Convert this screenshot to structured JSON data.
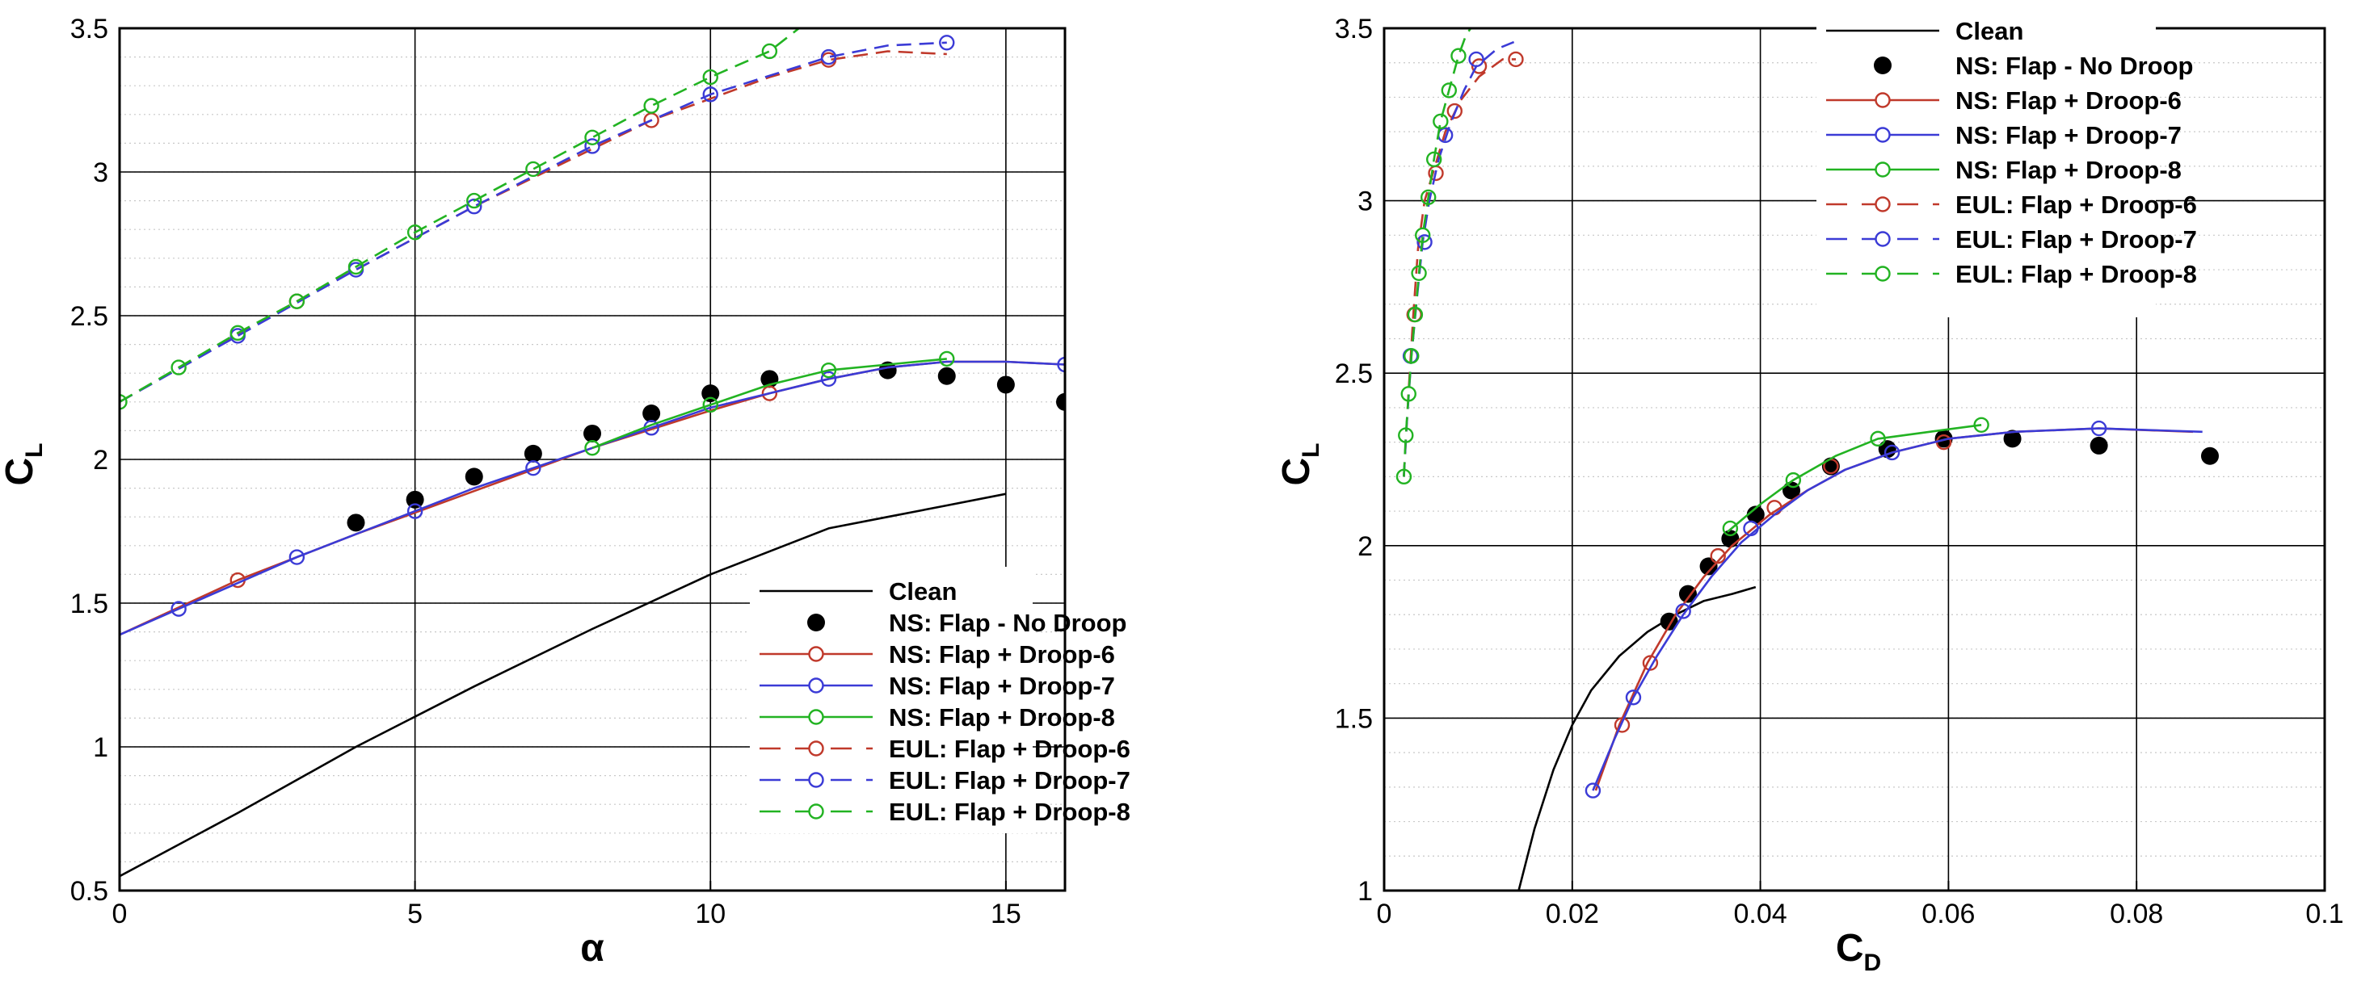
{
  "chart_data": [
    {
      "type": "line",
      "title": "",
      "xlabel": "α",
      "ylabel": "C_L",
      "ylabel_main": "C",
      "ylabel_sub": "L",
      "xlim": [
        0,
        16
      ],
      "ylim": [
        0.5,
        3.5
      ],
      "xticks": [
        0,
        5,
        10,
        15
      ],
      "xtick_labels": [
        "0",
        "5",
        "10",
        "15"
      ],
      "yticks": [
        0.5,
        1,
        1.5,
        2,
        2.5,
        3,
        3.5
      ],
      "ytick_labels": [
        "0.5",
        "1",
        "1.5",
        "2",
        "2.5",
        "3",
        "3.5"
      ],
      "grid": true,
      "legend_position": "bottom-right",
      "series": [
        {
          "name": "Clean",
          "style": "solid",
          "marker": "none",
          "color": "#000000",
          "x": [
            0,
            2,
            4,
            6,
            8,
            10,
            12,
            13,
            14,
            15
          ],
          "y": [
            0.55,
            0.77,
            1.0,
            1.21,
            1.41,
            1.6,
            1.76,
            1.8,
            1.84,
            1.88
          ]
        },
        {
          "name": "NS: Flap - No Droop",
          "style": "none",
          "marker": "filled-dot",
          "color": "#000000",
          "x": [
            4,
            5,
            6,
            7,
            8,
            9,
            10,
            11,
            13,
            14,
            15,
            16
          ],
          "y": [
            1.78,
            1.86,
            1.94,
            2.02,
            2.09,
            2.16,
            2.23,
            2.28,
            2.31,
            2.29,
            2.26,
            2.2
          ]
        },
        {
          "name": "NS: Flap + Droop-6",
          "style": "solid",
          "marker": "open-circle",
          "color": "#c0392b",
          "x": [
            0,
            2,
            4,
            6,
            8,
            10,
            11,
            12,
            13,
            14,
            15,
            16
          ],
          "y": [
            1.39,
            1.58,
            1.74,
            1.89,
            2.04,
            2.17,
            2.23,
            2.28,
            2.32,
            2.34,
            2.34,
            2.33
          ],
          "mx": [
            2,
            11
          ],
          "my": [
            1.58,
            2.23
          ]
        },
        {
          "name": "NS: Flap + Droop-7",
          "style": "solid",
          "marker": "open-circle",
          "color": "#3b3bd6",
          "x": [
            0,
            1,
            2,
            3,
            4,
            5,
            6,
            7,
            8,
            9,
            10,
            11,
            12,
            13,
            14,
            15,
            16
          ],
          "y": [
            1.39,
            1.48,
            1.57,
            1.66,
            1.74,
            1.82,
            1.9,
            1.97,
            2.04,
            2.11,
            2.18,
            2.23,
            2.28,
            2.32,
            2.34,
            2.34,
            2.33
          ],
          "mx": [
            1,
            3,
            5,
            7,
            9,
            12,
            16
          ],
          "my": [
            1.48,
            1.66,
            1.82,
            1.97,
            2.11,
            2.28,
            2.33
          ]
        },
        {
          "name": "NS: Flap + Droop-8",
          "style": "solid",
          "marker": "open-circle",
          "color": "#22b322",
          "x": [
            8,
            9,
            10,
            11,
            12,
            13,
            14
          ],
          "y": [
            2.04,
            2.12,
            2.19,
            2.26,
            2.31,
            2.33,
            2.35
          ],
          "mx": [
            8,
            10,
            12,
            14
          ],
          "my": [
            2.04,
            2.19,
            2.31,
            2.35
          ]
        },
        {
          "name": "EUL: Flap + Droop-6",
          "style": "dashed",
          "marker": "open-circle",
          "color": "#c0392b",
          "x": [
            0,
            3,
            6,
            9,
            11,
            12,
            13,
            14
          ],
          "y": [
            2.2,
            2.55,
            2.88,
            3.18,
            3.33,
            3.39,
            3.42,
            3.41
          ],
          "mx": [
            3,
            9,
            12
          ],
          "my": [
            2.55,
            3.18,
            3.39
          ]
        },
        {
          "name": "EUL: Flap + Droop-7",
          "style": "dashed",
          "marker": "open-circle",
          "color": "#3b3bd6",
          "x": [
            0,
            2,
            4,
            6,
            8,
            10,
            12,
            13,
            14
          ],
          "y": [
            2.2,
            2.43,
            2.66,
            2.88,
            3.09,
            3.27,
            3.4,
            3.44,
            3.45
          ],
          "mx": [
            2,
            4,
            6,
            8,
            10,
            12,
            14
          ],
          "my": [
            2.43,
            2.66,
            2.88,
            3.09,
            3.27,
            3.4,
            3.45
          ]
        },
        {
          "name": "EUL: Flap + Droop-8",
          "style": "dashed",
          "marker": "open-circle",
          "color": "#22b322",
          "x": [
            0,
            1,
            2,
            3,
            4,
            5,
            6,
            7,
            8,
            9,
            10,
            11,
            11.5
          ],
          "y": [
            2.2,
            2.32,
            2.44,
            2.55,
            2.67,
            2.79,
            2.9,
            3.01,
            3.12,
            3.23,
            3.33,
            3.42,
            3.5
          ],
          "mx": [
            0,
            1,
            2,
            3,
            4,
            5,
            6,
            7,
            8,
            9,
            10,
            11
          ],
          "my": [
            2.2,
            2.32,
            2.44,
            2.55,
            2.67,
            2.79,
            2.9,
            3.01,
            3.12,
            3.23,
            3.33,
            3.42
          ]
        }
      ]
    },
    {
      "type": "line",
      "title": "",
      "xlabel": "C_D",
      "xlabel_main": "C",
      "xlabel_sub": "D",
      "ylabel": "C_L",
      "ylabel_main": "C",
      "ylabel_sub": "L",
      "xlim": [
        0,
        0.1
      ],
      "ylim": [
        1,
        3.5
      ],
      "xticks": [
        0,
        0.02,
        0.04,
        0.06,
        0.08,
        0.1
      ],
      "xtick_labels": [
        "0",
        "0.02",
        "0.04",
        "0.06",
        "0.08",
        "0.1"
      ],
      "yticks": [
        1,
        1.5,
        2,
        2.5,
        3,
        3.5
      ],
      "ytick_labels": [
        "1",
        "1.5",
        "2",
        "2.5",
        "3",
        "3.5"
      ],
      "grid": true,
      "legend_position": "top-right",
      "series": [
        {
          "name": "Clean",
          "style": "solid",
          "marker": "none",
          "color": "#000000",
          "x": [
            0.0143,
            0.016,
            0.018,
            0.02,
            0.022,
            0.025,
            0.028,
            0.031,
            0.034,
            0.037,
            0.0395
          ],
          "y": [
            1.0,
            1.18,
            1.35,
            1.48,
            1.58,
            1.68,
            1.75,
            1.8,
            1.84,
            1.86,
            1.88
          ]
        },
        {
          "name": "NS: Flap - No Droop",
          "style": "none",
          "marker": "filled-dot",
          "color": "#000000",
          "x": [
            0.0303,
            0.0323,
            0.0345,
            0.0368,
            0.0395,
            0.0433,
            0.0475,
            0.0535,
            0.0595,
            0.0668,
            0.076,
            0.0878
          ],
          "y": [
            1.78,
            1.86,
            1.94,
            2.02,
            2.09,
            2.16,
            2.23,
            2.28,
            2.31,
            2.31,
            2.29,
            2.26
          ]
        },
        {
          "name": "NS: Flap + Droop-6",
          "style": "solid",
          "marker": "open-circle",
          "color": "#c0392b",
          "x": [
            0.0225,
            0.025,
            0.028,
            0.031,
            0.034,
            0.037,
            0.041,
            0.045,
            0.049,
            0.054,
            0.06,
            0.067,
            0.076,
            0.086
          ],
          "y": [
            1.29,
            1.48,
            1.66,
            1.8,
            1.91,
            2.0,
            2.09,
            2.16,
            2.22,
            2.27,
            2.31,
            2.33,
            2.34,
            2.33
          ],
          "mx": [
            0.0253,
            0.0283,
            0.0355,
            0.0415,
            0.0475,
            0.0595
          ],
          "my": [
            1.48,
            1.66,
            1.97,
            2.11,
            2.23,
            2.3
          ]
        },
        {
          "name": "NS: Flap + Droop-7",
          "style": "solid",
          "marker": "open-circle",
          "color": "#3b3bd6",
          "x": [
            0.0222,
            0.0245,
            0.0265,
            0.029,
            0.0318,
            0.0348,
            0.038,
            0.0415,
            0.045,
            0.049,
            0.054,
            0.06,
            0.067,
            0.076,
            0.087
          ],
          "y": [
            1.29,
            1.44,
            1.56,
            1.68,
            1.8,
            1.91,
            2.01,
            2.09,
            2.16,
            2.22,
            2.27,
            2.31,
            2.33,
            2.34,
            2.33
          ],
          "mx": [
            0.0222,
            0.0265,
            0.0318,
            0.039,
            0.054,
            0.076
          ],
          "my": [
            1.29,
            1.56,
            1.81,
            2.05,
            2.27,
            2.34
          ]
        },
        {
          "name": "NS: Flap + Droop-8",
          "style": "solid",
          "marker": "open-circle",
          "color": "#22b322",
          "x": [
            0.0365,
            0.04,
            0.0435,
            0.048,
            0.0525,
            0.058,
            0.0635
          ],
          "y": [
            2.04,
            2.12,
            2.19,
            2.26,
            2.31,
            2.33,
            2.35
          ],
          "mx": [
            0.0368,
            0.0435,
            0.0525,
            0.0635
          ],
          "my": [
            2.05,
            2.19,
            2.31,
            2.35
          ]
        },
        {
          "name": "EUL: Flap + Droop-6",
          "style": "dashed",
          "marker": "open-circle",
          "color": "#c0392b",
          "x": [
            0.0021,
            0.0026,
            0.0031,
            0.0036,
            0.0043,
            0.0053,
            0.0065,
            0.0081,
            0.0101,
            0.0126,
            0.014
          ],
          "y": [
            2.2,
            2.45,
            2.67,
            2.86,
            3.0,
            3.09,
            3.2,
            3.29,
            3.36,
            3.41,
            3.41
          ],
          "mx": [
            0.0032,
            0.0055,
            0.0075,
            0.0101,
            0.014
          ],
          "my": [
            2.67,
            3.08,
            3.26,
            3.39,
            3.41
          ]
        },
        {
          "name": "EUL: Flap + Droop-7",
          "style": "dashed",
          "marker": "open-circle",
          "color": "#3b3bd6",
          "x": [
            0.0021,
            0.0024,
            0.0029,
            0.0035,
            0.0041,
            0.0048,
            0.0058,
            0.007,
            0.0085,
            0.0098,
            0.012,
            0.0138
          ],
          "y": [
            2.2,
            2.35,
            2.55,
            2.72,
            2.88,
            3.0,
            3.12,
            3.22,
            3.32,
            3.39,
            3.44,
            3.46
          ],
          "mx": [
            0.0028,
            0.0043,
            0.0065,
            0.0098
          ],
          "my": [
            2.55,
            2.88,
            3.19,
            3.41
          ]
        },
        {
          "name": "EUL: Flap + Droop-8",
          "style": "dashed",
          "marker": "open-circle",
          "color": "#22b322",
          "x": [
            0.0021,
            0.0023,
            0.0026,
            0.0029,
            0.0033,
            0.0037,
            0.0041,
            0.0047,
            0.0053,
            0.006,
            0.0069,
            0.0079,
            0.0087,
            0.0092
          ],
          "y": [
            2.2,
            2.32,
            2.44,
            2.55,
            2.67,
            2.79,
            2.9,
            3.01,
            3.12,
            3.23,
            3.32,
            3.42,
            3.48,
            3.5
          ],
          "mx": [
            0.0021,
            0.0023,
            0.0026,
            0.0029,
            0.0033,
            0.0037,
            0.0041,
            0.0047,
            0.0053,
            0.006,
            0.0069,
            0.0079
          ],
          "my": [
            2.2,
            2.32,
            2.44,
            2.55,
            2.67,
            2.79,
            2.9,
            3.01,
            3.12,
            3.23,
            3.32,
            3.42
          ]
        }
      ]
    }
  ]
}
